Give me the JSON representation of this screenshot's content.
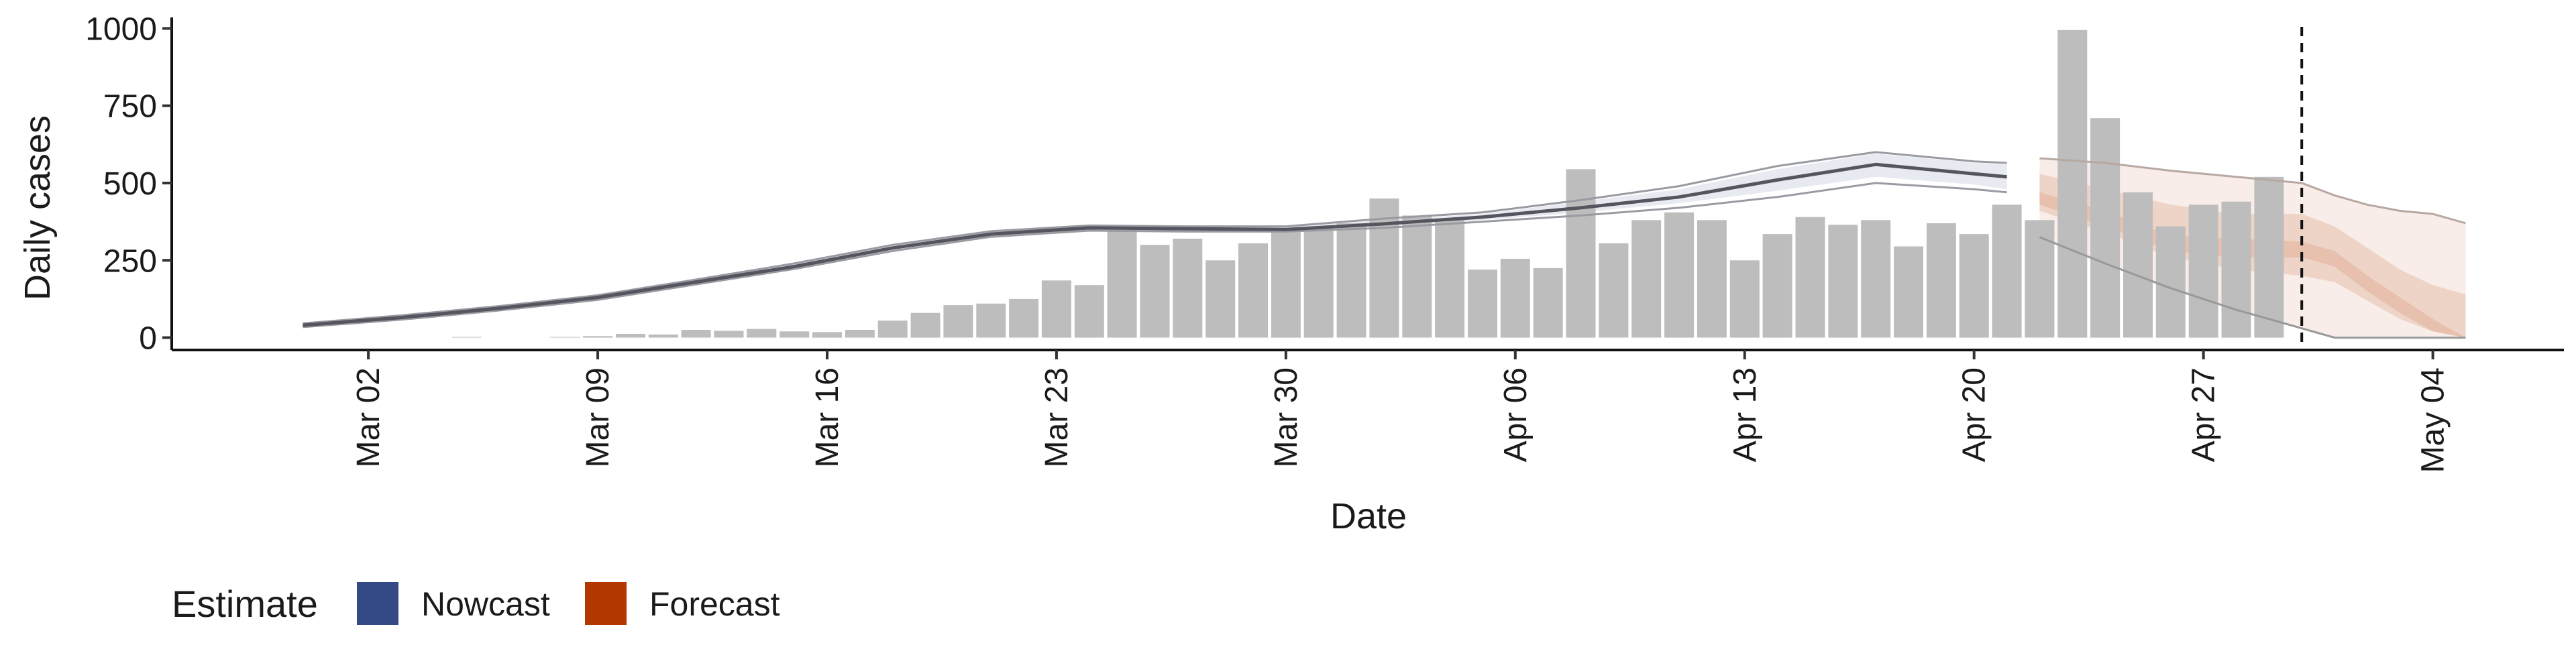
{
  "chart_data": {
    "type": "bar",
    "title": "",
    "xlabel": "Date",
    "ylabel": "Daily cases",
    "ylim": [
      -40,
      1040
    ],
    "yticks": [
      0,
      250,
      500,
      750,
      1000
    ],
    "xticks": [
      {
        "date": "2020-03-02",
        "label": "Mar 02"
      },
      {
        "date": "2020-03-09",
        "label": "Mar 09"
      },
      {
        "date": "2020-03-16",
        "label": "Mar 16"
      },
      {
        "date": "2020-03-23",
        "label": "Mar 23"
      },
      {
        "date": "2020-03-30",
        "label": "Mar 30"
      },
      {
        "date": "2020-04-06",
        "label": "Apr 06"
      },
      {
        "date": "2020-04-13",
        "label": "Apr 13"
      },
      {
        "date": "2020-04-20",
        "label": "Apr 20"
      },
      {
        "date": "2020-04-27",
        "label": "Apr 27"
      },
      {
        "date": "2020-05-04",
        "label": "May 04"
      }
    ],
    "xlim": [
      "2020-02-25",
      "2020-05-08"
    ],
    "grid": false,
    "vline_date": "2020-04-30",
    "bars": {
      "color": "#bdbdbd",
      "dates": [
        "2020-03-05",
        "2020-03-06",
        "2020-03-07",
        "2020-03-08",
        "2020-03-09",
        "2020-03-10",
        "2020-03-11",
        "2020-03-12",
        "2020-03-13",
        "2020-03-14",
        "2020-03-15",
        "2020-03-16",
        "2020-03-17",
        "2020-03-18",
        "2020-03-19",
        "2020-03-20",
        "2020-03-21",
        "2020-03-22",
        "2020-03-23",
        "2020-03-24",
        "2020-03-25",
        "2020-03-26",
        "2020-03-27",
        "2020-03-28",
        "2020-03-29",
        "2020-03-30",
        "2020-03-31",
        "2020-04-01",
        "2020-04-02",
        "2020-04-03",
        "2020-04-04",
        "2020-04-05",
        "2020-04-06",
        "2020-04-07",
        "2020-04-08",
        "2020-04-09",
        "2020-04-10",
        "2020-04-11",
        "2020-04-12",
        "2020-04-13",
        "2020-04-14",
        "2020-04-15",
        "2020-04-16",
        "2020-04-17",
        "2020-04-18",
        "2020-04-19",
        "2020-04-20",
        "2020-04-21",
        "2020-04-22",
        "2020-04-23",
        "2020-04-24",
        "2020-04-25",
        "2020-04-26",
        "2020-04-27",
        "2020-04-28",
        "2020-04-29",
        "2020-04-30"
      ],
      "values": [
        2,
        0,
        0,
        2,
        5,
        12,
        10,
        25,
        22,
        28,
        20,
        18,
        25,
        55,
        80,
        105,
        110,
        125,
        185,
        170,
        345,
        300,
        320,
        250,
        305,
        350,
        355,
        370,
        450,
        395,
        385,
        220,
        255,
        225,
        545,
        305,
        380,
        405,
        380,
        250,
        335,
        390,
        365,
        380,
        295,
        370,
        335,
        430,
        380,
        995,
        710,
        470,
        360,
        430,
        440,
        520,
        0
      ]
    },
    "series": [
      {
        "name": "Nowcast",
        "color": "#3a4f86",
        "dates": [
          "2020-02-29",
          "2020-03-03",
          "2020-03-06",
          "2020-03-09",
          "2020-03-12",
          "2020-03-15",
          "2020-03-18",
          "2020-03-21",
          "2020-03-24",
          "2020-03-27",
          "2020-03-30",
          "2020-04-02",
          "2020-04-05",
          "2020-04-08",
          "2020-04-11",
          "2020-04-14",
          "2020-04-17",
          "2020-04-20",
          "2020-04-21"
        ],
        "median": [
          40,
          65,
          95,
          130,
          180,
          230,
          290,
          335,
          355,
          352,
          350,
          368,
          390,
          420,
          455,
          510,
          560,
          530,
          520
        ],
        "upper_90": [
          45,
          70,
          100,
          135,
          185,
          238,
          298,
          342,
          362,
          358,
          358,
          380,
          400,
          440,
          480,
          545,
          595,
          565,
          560
        ],
        "lower_90": [
          35,
          60,
          90,
          125,
          175,
          225,
          283,
          328,
          348,
          345,
          345,
          360,
          380,
          405,
          435,
          475,
          520,
          495,
          480
        ],
        "outline_upper": [
          46,
          72,
          102,
          137,
          188,
          240,
          300,
          344,
          363,
          360,
          360,
          385,
          405,
          445,
          490,
          555,
          600,
          570,
          565
        ],
        "outline_lower": [
          34,
          58,
          88,
          122,
          172,
          222,
          280,
          326,
          346,
          343,
          343,
          355,
          375,
          395,
          420,
          455,
          500,
          480,
          470
        ]
      },
      {
        "name": "Forecast",
        "color": "#b33a00",
        "dates": [
          "2020-04-22",
          "2020-04-24",
          "2020-04-26",
          "2020-04-28",
          "2020-04-30",
          "2020-05-01",
          "2020-05-02",
          "2020-05-03",
          "2020-05-04",
          "2020-05-05"
        ],
        "upper_90": [
          580,
          565,
          540,
          520,
          500,
          460,
          430,
          410,
          400,
          370
        ],
        "lower_90": [
          325,
          240,
          160,
          90,
          30,
          0,
          0,
          0,
          0,
          0
        ],
        "upper_50": [
          530,
          480,
          430,
          400,
          400,
          360,
          290,
          220,
          170,
          140
        ],
        "lower_50": [
          410,
          340,
          260,
          220,
          200,
          180,
          120,
          60,
          20,
          0
        ],
        "upper_20": [
          470,
          410,
          330,
          320,
          310,
          280,
          200,
          130,
          60,
          0
        ],
        "lower_20": [
          430,
          360,
          280,
          260,
          260,
          230,
          150,
          80,
          20,
          0
        ]
      }
    ],
    "legend": {
      "title": "Estimate",
      "position": "bottom-left",
      "items": [
        {
          "label": "Nowcast",
          "color": "#344a86"
        },
        {
          "label": "Forecast",
          "color": "#b33800"
        }
      ]
    }
  }
}
